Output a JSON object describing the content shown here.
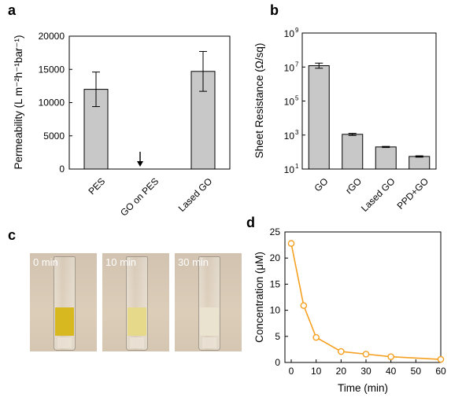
{
  "panels": {
    "a": {
      "label": "a",
      "chart_data": {
        "type": "bar",
        "categories": [
          "PES",
          "GO on PES",
          "Lased GO"
        ],
        "values": [
          12000,
          0,
          14700
        ],
        "error": [
          2600,
          0,
          3000
        ],
        "ylabel": "Permeability (L m⁻²h⁻¹bar⁻¹)",
        "ylim": [
          0,
          20000
        ],
        "yticks": [
          "0",
          "5000",
          "10000",
          "15000",
          "20000"
        ],
        "bar_color": "#c8c8c8",
        "annotation": "arrow at GO on PES (no flux)"
      }
    },
    "b": {
      "label": "b",
      "chart_data": {
        "type": "bar",
        "yscale": "log",
        "categories": [
          "GO",
          "rGO",
          "Lased GO",
          "PPD+GO"
        ],
        "values": [
          12000000,
          1100,
          200,
          55
        ],
        "error_low": [
          8500000,
          950,
          185,
          50
        ],
        "error_high": [
          17000000,
          1250,
          215,
          60
        ],
        "ylabel": "Sheet Resistance (Ω/sq)",
        "ylim": [
          10,
          1000000000
        ],
        "yticks": [
          "10",
          "10",
          "10",
          "10",
          "10"
        ],
        "ytick_exponents": [
          "1",
          "3",
          "5",
          "7",
          "9"
        ],
        "bar_color": "#c8c8c8"
      }
    },
    "c": {
      "label": "c",
      "photos": [
        {
          "label": "0 min",
          "liquid_color": "#d8b820"
        },
        {
          "label": "10 min",
          "liquid_color": "#e7d98a"
        },
        {
          "label": "30 min",
          "liquid_color": "#e9e3cf"
        }
      ]
    },
    "d": {
      "label": "d",
      "chart_data": {
        "type": "line",
        "x": [
          0,
          5,
          10,
          20,
          30,
          40,
          60
        ],
        "y": [
          22.8,
          10.9,
          4.8,
          2.1,
          1.6,
          1.1,
          0.6
        ],
        "xlabel": "Time (min)",
        "ylabel": "Concentration (μM)",
        "xlim": [
          0,
          60
        ],
        "ylim": [
          0,
          25
        ],
        "xticks": [
          "0",
          "10",
          "20",
          "30",
          "40",
          "50",
          "60"
        ],
        "yticks": [
          "0",
          "5",
          "10",
          "15",
          "20",
          "25"
        ],
        "line_color": "#f5a020",
        "marker": "open circle"
      }
    }
  }
}
